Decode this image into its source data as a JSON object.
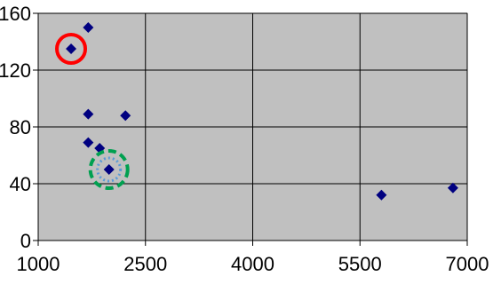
{
  "chart_data": {
    "type": "scatter",
    "title": "",
    "xlabel": "",
    "ylabel": "",
    "xlim": [
      1000,
      7000
    ],
    "ylim": [
      0,
      160
    ],
    "x_ticks": [
      1000,
      2500,
      4000,
      5500,
      7000
    ],
    "y_ticks": [
      0,
      40,
      80,
      120,
      160
    ],
    "x_tick_labels": [
      "1000",
      "2500",
      "4000",
      "5500",
      "7000"
    ],
    "y_tick_labels": [
      "0",
      "40",
      "80",
      "120",
      "160"
    ],
    "grid": true,
    "legend": "none",
    "series": [
      {
        "marker": "diamond",
        "color": "#000080",
        "points": [
          {
            "x": 1460,
            "y": 135
          },
          {
            "x": 1700,
            "y": 150
          },
          {
            "x": 1700,
            "y": 89
          },
          {
            "x": 2220,
            "y": 88
          },
          {
            "x": 1700,
            "y": 69
          },
          {
            "x": 1860,
            "y": 65
          },
          {
            "x": 1990,
            "y": 50
          },
          {
            "x": 5800,
            "y": 32
          },
          {
            "x": 6800,
            "y": 37
          }
        ]
      }
    ],
    "annotations": [
      {
        "shape": "circle",
        "style": "solid",
        "color": "#ff0000",
        "target_point": 0
      },
      {
        "shape": "circle",
        "style": "dashed",
        "color": "#00a050",
        "target_point": 6
      },
      {
        "shape": "circle",
        "style": "dotted",
        "color": "#5b9bd5",
        "target_point": 6
      }
    ],
    "colors": {
      "plot_background": "#c0c0c0",
      "gridline": "#000000",
      "marker": "#000080"
    }
  }
}
